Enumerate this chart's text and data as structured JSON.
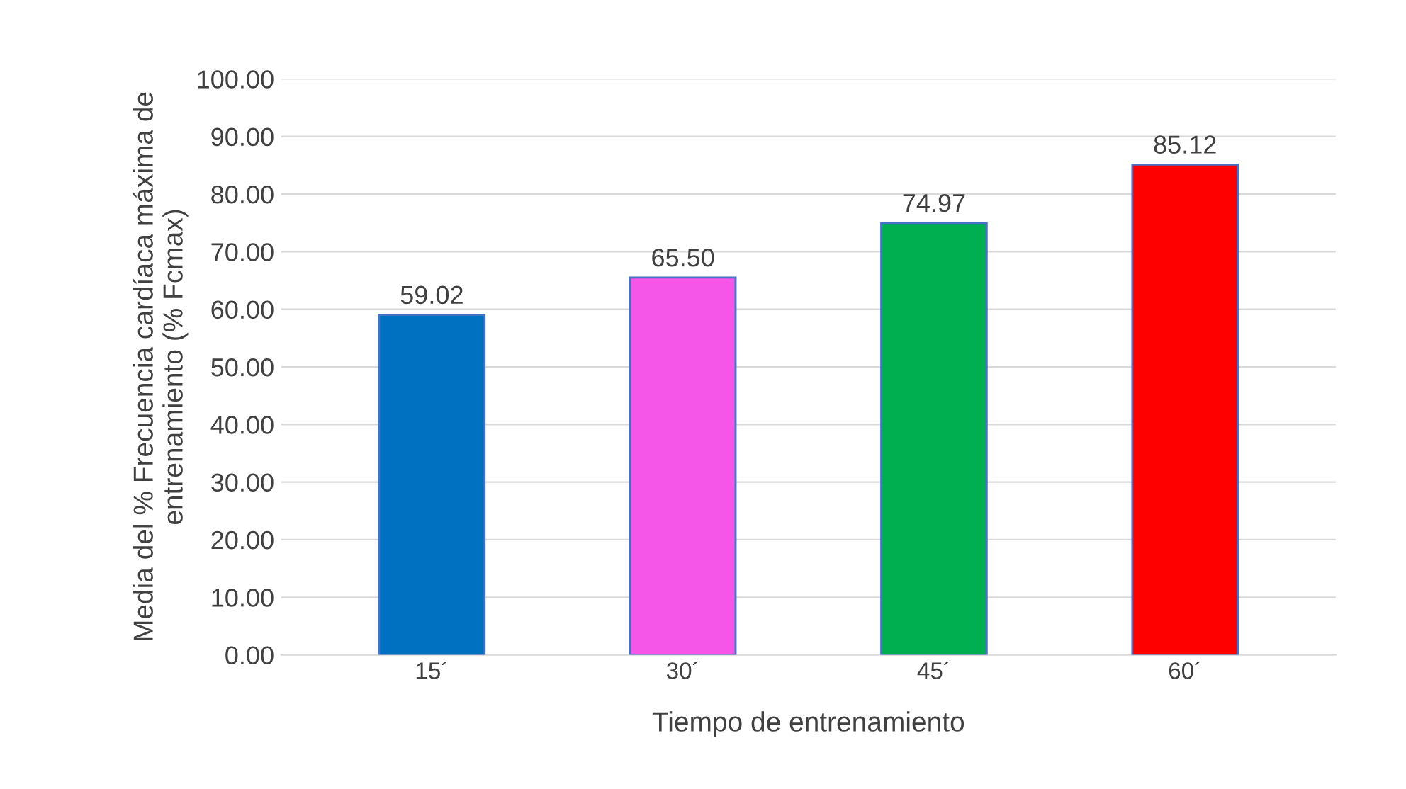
{
  "chart_data": {
    "type": "bar",
    "categories": [
      "15´",
      "30´",
      "45´",
      "60´"
    ],
    "values": [
      59.02,
      65.5,
      74.97,
      85.12
    ],
    "value_labels": [
      "59.02",
      "65.50",
      "74.97",
      "85.12"
    ],
    "colors": [
      "#0070c0",
      "#f556e8",
      "#00b050",
      "#ff0000"
    ],
    "xlabel": "Tiempo de entrenamiento",
    "ylabel": "Media del % Frecuencia cardíaca máxima de entrenamiento (% Fcmax)",
    "ylim": [
      0,
      100
    ],
    "yticks": [
      {
        "value": 0,
        "label": "0.00"
      },
      {
        "value": 10,
        "label": "10.00"
      },
      {
        "value": 20,
        "label": "20.00"
      },
      {
        "value": 30,
        "label": "30.00"
      },
      {
        "value": 40,
        "label": "40.00"
      },
      {
        "value": 50,
        "label": "50.00"
      },
      {
        "value": 60,
        "label": "60.00"
      },
      {
        "value": 70,
        "label": "70.00"
      },
      {
        "value": 80,
        "label": "80.00"
      },
      {
        "value": 90,
        "label": "90.00"
      },
      {
        "value": 100,
        "label": "100.00"
      }
    ],
    "grid": "y"
  }
}
